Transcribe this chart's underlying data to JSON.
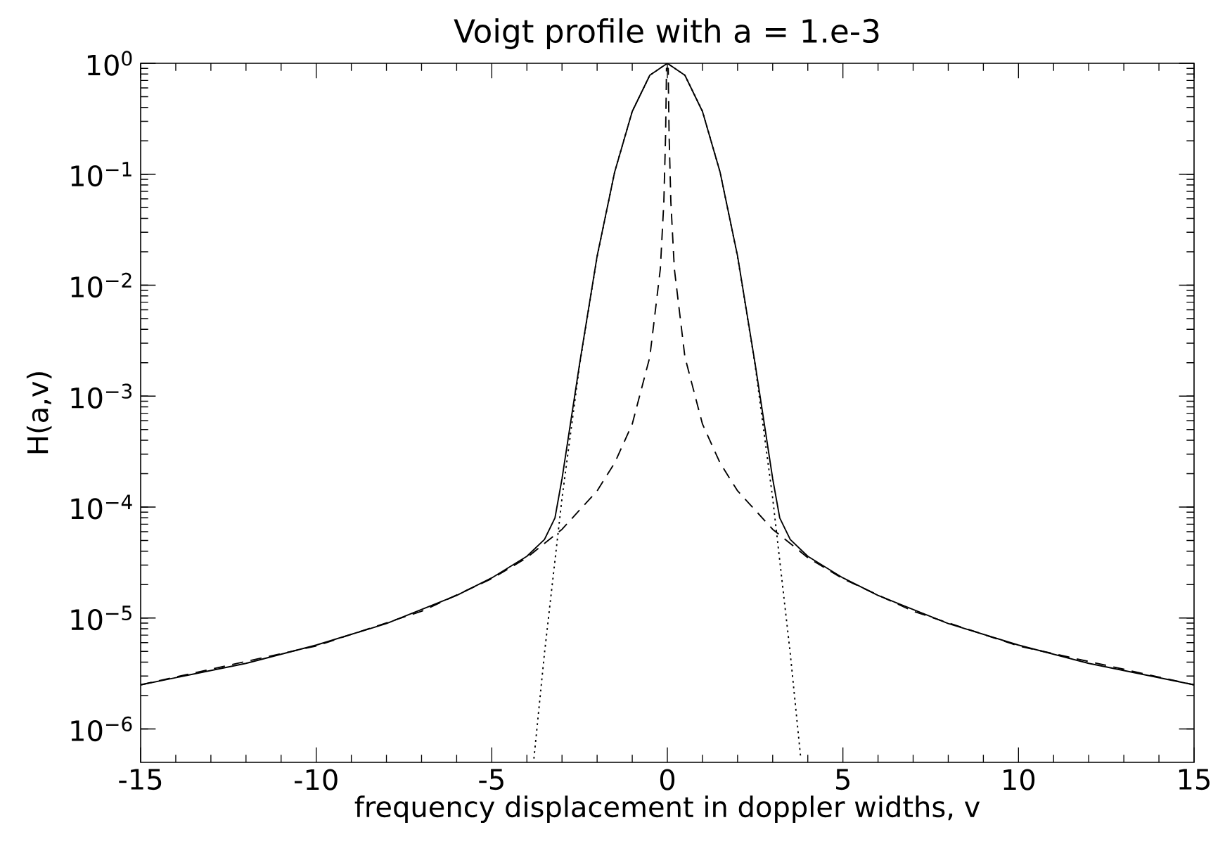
{
  "chart_data": {
    "type": "line",
    "title": "Voigt profile with a = 1.e-3",
    "xlabel": "frequency displacement in doppler widths, v",
    "ylabel": "H(a,v)",
    "log": "y",
    "grid": false,
    "xlim": [
      -15,
      15
    ],
    "xticks": [
      -15,
      -10,
      -5,
      0,
      5,
      10,
      15
    ],
    "ylim": [
      5e-07,
      1
    ],
    "yticks": [
      {
        "value": 1e-06,
        "label": "10$^{−6}$"
      },
      {
        "value": 1e-05,
        "label": "10$^{−5}$"
      },
      {
        "value": 0.0001,
        "label": "10$^{−4}$"
      },
      {
        "value": 0.001,
        "label": "10$^{−3}$"
      },
      {
        "value": 0.01,
        "label": "10$^{−2}$"
      },
      {
        "value": 0.1,
        "label": "10$^{−1}$"
      },
      {
        "value": 1,
        "label": "10$^{0}$"
      }
    ],
    "series": [
      {
        "color": "#000000",
        "line_style": "solid",
        "x": [
          -15,
          -12,
          -10,
          -8,
          -6,
          -5,
          -4,
          -3.5,
          -3.2,
          -3,
          -2.5,
          -2,
          -1.5,
          -1,
          -0.5,
          0,
          0.5,
          1,
          1.5,
          2,
          2.5,
          3,
          3.2,
          3.5,
          4,
          5,
          6,
          8,
          10,
          12,
          15
        ],
        "values": [
          2.5e-06,
          3.9e-06,
          5.7e-06,
          8.9e-06,
          1.6e-05,
          2.3e-05,
          3.6e-05,
          5.1e-05,
          8e-05,
          0.00018,
          0.00195,
          0.0183,
          0.105,
          0.368,
          0.78,
          1,
          0.78,
          0.368,
          0.105,
          0.0183,
          0.00195,
          0.00018,
          8e-05,
          5.1e-05,
          3.6e-05,
          2.3e-05,
          1.6e-05,
          8.9e-06,
          5.7e-06,
          3.9e-06,
          2.5e-06
        ]
      },
      {
        "color": "#000000",
        "line_style": "dashed",
        "x": [
          -15,
          -10,
          -7,
          -5,
          -4,
          -3,
          -2,
          -1.5,
          -1,
          -0.5,
          -0.2,
          -0.1,
          -0.05,
          -0.03,
          -0.025,
          0.025,
          0.03,
          0.05,
          0.1,
          0.2,
          0.5,
          1,
          1.5,
          2,
          3,
          4,
          5,
          7,
          10,
          15
        ],
        "values": [
          2.5e-06,
          5.6e-06,
          1.15e-05,
          2.26e-05,
          3.5e-05,
          6.3e-05,
          0.00014,
          0.00025,
          0.00056,
          0.00225,
          0.014,
          0.056,
          0.226,
          0.63,
          0.9,
          0.9,
          0.63,
          0.226,
          0.056,
          0.014,
          0.00225,
          0.00056,
          0.00025,
          0.00014,
          6.3e-05,
          3.5e-05,
          2.26e-05,
          1.15e-05,
          5.6e-06,
          2.5e-06
        ]
      },
      {
        "color": "#000000",
        "line_style": "dotted",
        "x": [
          -3.8,
          -3.5,
          -3,
          -2.5,
          -2,
          -1.5,
          -1,
          -0.5,
          0,
          0.5,
          1,
          1.5,
          2,
          2.5,
          3,
          3.5,
          3.8
        ],
        "values": [
          5.4e-07,
          4.8e-06,
          0.00012,
          0.0019,
          0.018,
          0.105,
          0.37,
          0.78,
          1,
          0.78,
          0.37,
          0.105,
          0.018,
          0.0019,
          0.00012,
          4.8e-06,
          5.4e-07
        ]
      }
    ]
  }
}
